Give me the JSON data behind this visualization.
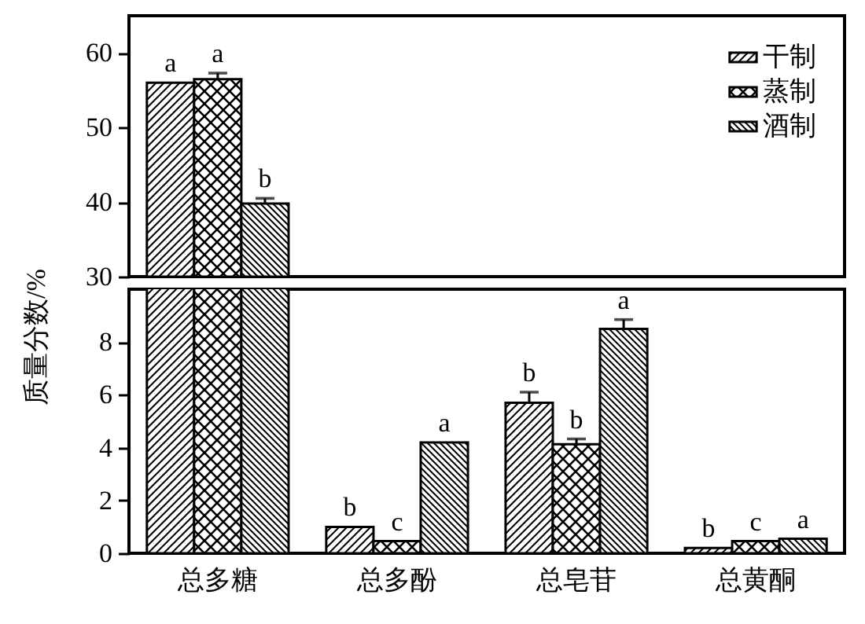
{
  "chart_data": [
    {
      "type": "bar",
      "categories": [
        null,
        null,
        null,
        null
      ],
      "series": [
        {
          "name": "干制",
          "color": "#000000",
          "values": [
            56.0,
            null,
            null,
            null
          ],
          "errors": [
            null,
            null,
            null,
            null
          ],
          "value_labels": [
            "a",
            null,
            null,
            null
          ]
        },
        {
          "name": "蒸制",
          "color": "#000000",
          "values": [
            56.5,
            null,
            null,
            null
          ],
          "errors": [
            0.8,
            null,
            null,
            null
          ],
          "value_labels": [
            "a",
            null,
            null,
            null
          ]
        },
        {
          "name": "酒制",
          "color": "#000000",
          "values": [
            39.8,
            null,
            null,
            null
          ],
          "errors": [
            0.7,
            null,
            null,
            null
          ],
          "value_labels": [
            "b",
            null,
            null,
            null
          ]
        }
      ],
      "ylim": [
        30,
        65
      ],
      "yticks": [
        30,
        40,
        50,
        60
      ],
      "tick_labels": "y",
      "legend": "top right",
      "grid": false
    },
    {
      "type": "bar",
      "categories": [
        "总多糖",
        "总多酚",
        "总皂苷",
        "总黄酮"
      ],
      "ylabel": "质量分数/%",
      "series": [
        {
          "color": "#000000",
          "values": [
            null,
            1.0,
            5.7,
            0.2
          ],
          "errors": [
            null,
            null,
            0.4,
            null
          ],
          "value_labels": [
            null,
            "b",
            "b",
            "b"
          ]
        },
        {
          "color": "#000000",
          "values": [
            null,
            0.46,
            4.13,
            0.46
          ],
          "errors": [
            null,
            null,
            0.2,
            null
          ],
          "value_labels": [
            null,
            "c",
            "b",
            "c"
          ]
        },
        {
          "color": "#000000",
          "values": [
            null,
            4.2,
            8.5,
            0.55
          ],
          "errors": [
            null,
            null,
            0.35,
            null
          ],
          "value_labels": [
            null,
            "a",
            "a",
            "a"
          ]
        }
      ],
      "ylim": [
        0,
        10
      ],
      "yticks": [
        0,
        2,
        4,
        6,
        8
      ],
      "grid": false
    }
  ]
}
